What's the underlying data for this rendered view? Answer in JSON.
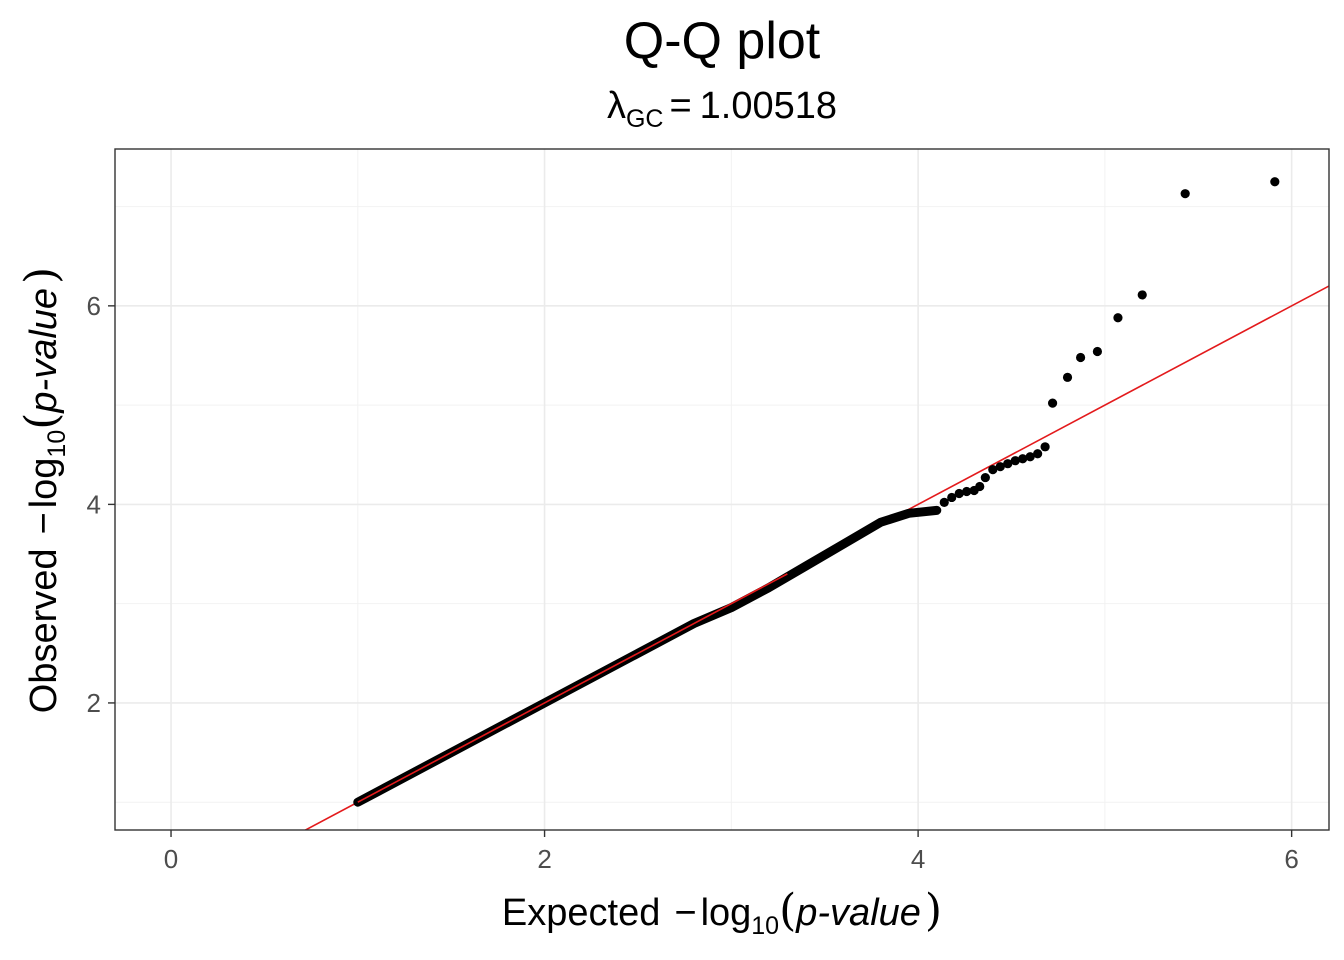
{
  "chart_data": {
    "type": "scatter",
    "title": "Q-Q plot",
    "subtitle": {
      "symbol": "λ",
      "subscript": "GC",
      "equals": "=",
      "value": "1.00518"
    },
    "xlabel": {
      "prefix": "Expected",
      "minus": "−",
      "log": "log",
      "base": "10",
      "open": "(",
      "arg": "p-value",
      "close": ")"
    },
    "ylabel": {
      "prefix": "Observed",
      "minus": "−",
      "log": "log",
      "base": "10",
      "open": "(",
      "arg": "p-value",
      "close": ")"
    },
    "xlim": [
      -0.3,
      6.2
    ],
    "ylim": [
      0.72,
      7.58
    ],
    "xticks": [
      0,
      2,
      4,
      6
    ],
    "yticks": [
      2,
      4,
      6
    ],
    "grid": true,
    "reference_line": {
      "slope": 1,
      "intercept": 0,
      "color": "#e31a1c"
    },
    "point_color": "#000000",
    "line_range": [
      1.0,
      4.36
    ],
    "line_bulk": [
      [
        1.0,
        1.0
      ],
      [
        2.0,
        2.0
      ],
      [
        2.8,
        2.8
      ],
      [
        3.0,
        2.96
      ],
      [
        3.2,
        3.16
      ],
      [
        3.4,
        3.38
      ],
      [
        3.6,
        3.6
      ],
      [
        3.8,
        3.82
      ],
      [
        3.95,
        3.91
      ],
      [
        4.1,
        3.94
      ]
    ],
    "points": [
      [
        4.14,
        4.02
      ],
      [
        4.18,
        4.07
      ],
      [
        4.22,
        4.11
      ],
      [
        4.26,
        4.13
      ],
      [
        4.3,
        4.14
      ],
      [
        4.33,
        4.18
      ],
      [
        4.36,
        4.27
      ],
      [
        4.4,
        4.35
      ],
      [
        4.44,
        4.38
      ],
      [
        4.48,
        4.41
      ],
      [
        4.52,
        4.44
      ],
      [
        4.56,
        4.46
      ],
      [
        4.6,
        4.48
      ],
      [
        4.64,
        4.51
      ],
      [
        4.68,
        4.58
      ],
      [
        4.72,
        5.02
      ],
      [
        4.8,
        5.28
      ],
      [
        4.87,
        5.48
      ],
      [
        4.96,
        5.54
      ],
      [
        5.07,
        5.88
      ],
      [
        5.2,
        6.11
      ],
      [
        5.43,
        7.13
      ],
      [
        5.91,
        7.25
      ]
    ]
  }
}
